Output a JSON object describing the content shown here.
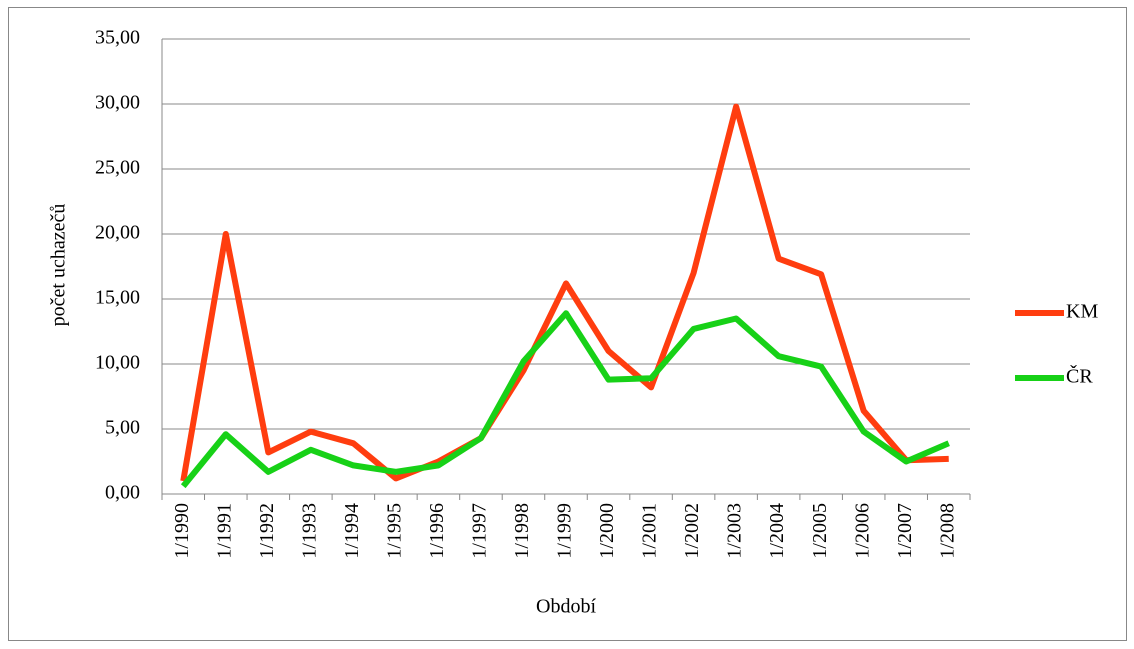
{
  "chart_data": {
    "type": "line",
    "categories": [
      "1/1990",
      "1/1991",
      "1/1992",
      "1/1993",
      "1/1994",
      "1/1995",
      "1/1996",
      "1/1997",
      "1/1998",
      "1/1999",
      "1/2000",
      "1/2001",
      "1/2002",
      "1/2003",
      "1/2004",
      "1/2005",
      "1/2006",
      "1/2007",
      "1/2008"
    ],
    "series": [
      {
        "name": "KM",
        "color": "#ff3d0f",
        "values": [
          1.0,
          20.0,
          3.2,
          4.8,
          3.9,
          1.2,
          2.5,
          4.3,
          9.5,
          16.2,
          11.0,
          8.2,
          17.0,
          29.8,
          18.1,
          16.9,
          6.4,
          2.6,
          2.7
        ]
      },
      {
        "name": "ČR",
        "color": "#17d117",
        "values": [
          0.6,
          4.6,
          1.7,
          3.4,
          2.2,
          1.7,
          2.2,
          4.3,
          10.2,
          13.9,
          8.8,
          8.9,
          12.7,
          13.5,
          10.6,
          9.8,
          4.8,
          2.5,
          3.9
        ]
      }
    ],
    "ylim": [
      0,
      35
    ],
    "yticks": [
      {
        "value": 0,
        "label": "0,00"
      },
      {
        "value": 5,
        "label": "5,00"
      },
      {
        "value": 10,
        "label": "10,00"
      },
      {
        "value": 15,
        "label": "15,00"
      },
      {
        "value": 20,
        "label": "20,00"
      },
      {
        "value": 25,
        "label": "25,00"
      },
      {
        "value": 30,
        "label": "30,00"
      },
      {
        "value": 35,
        "label": "35,00"
      }
    ],
    "xlabel": "Období",
    "ylabel": "počet uchazečů",
    "grid": true,
    "legend": "right"
  }
}
